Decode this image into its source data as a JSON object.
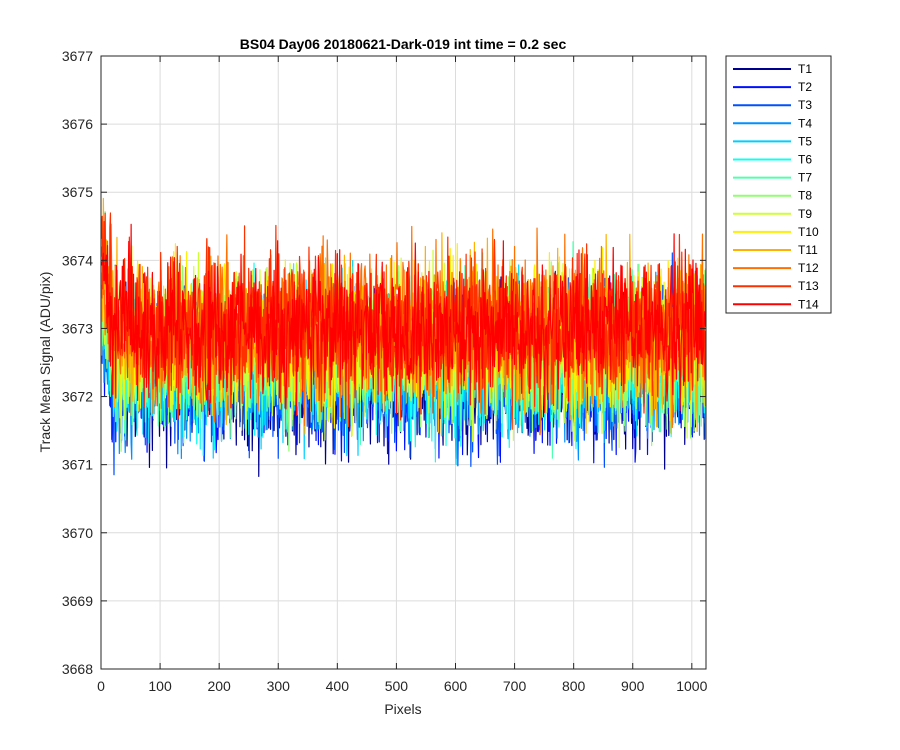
{
  "chart_data": {
    "type": "line",
    "title": "BS04 Day06 20180621-Dark-019 int time = 0.2 sec",
    "xlabel": "Pixels",
    "ylabel": "Track Mean Signal (ADU/pix)",
    "xlim": [
      0,
      1024
    ],
    "ylim": [
      3668,
      3677
    ],
    "xticks": [
      0,
      100,
      200,
      300,
      400,
      500,
      600,
      700,
      800,
      900,
      1000
    ],
    "yticks": [
      3668,
      3669,
      3670,
      3671,
      3672,
      3673,
      3674,
      3675,
      3676,
      3677
    ],
    "grid": true,
    "legend_position": "outside-top-right",
    "series_note": "Each series is dark-frame track mean signal per pixel; values fluctuate around the listed mean with the listed amplitude.",
    "series": [
      {
        "name": "T1",
        "color": "#00008f",
        "mean": 3672.3,
        "amplitude": 1.5
      },
      {
        "name": "T2",
        "color": "#0010ff",
        "mean": 3672.35,
        "amplitude": 1.5
      },
      {
        "name": "T3",
        "color": "#0050ff",
        "mean": 3672.4,
        "amplitude": 1.5
      },
      {
        "name": "T4",
        "color": "#0090ff",
        "mean": 3672.45,
        "amplitude": 1.5
      },
      {
        "name": "T5",
        "color": "#00d0ff",
        "mean": 3672.5,
        "amplitude": 1.5
      },
      {
        "name": "T6",
        "color": "#10ffef",
        "mean": 3672.55,
        "amplitude": 1.5
      },
      {
        "name": "T7",
        "color": "#50ffaf",
        "mean": 3672.6,
        "amplitude": 1.5
      },
      {
        "name": "T8",
        "color": "#90ff6f",
        "mean": 3672.65,
        "amplitude": 1.5
      },
      {
        "name": "T9",
        "color": "#cfff30",
        "mean": 3672.75,
        "amplitude": 1.5
      },
      {
        "name": "T10",
        "color": "#ffef00",
        "mean": 3672.85,
        "amplitude": 1.5
      },
      {
        "name": "T11",
        "color": "#ffb000",
        "mean": 3672.9,
        "amplitude": 1.5
      },
      {
        "name": "T12",
        "color": "#ff7000",
        "mean": 3673.0,
        "amplitude": 1.5
      },
      {
        "name": "T13",
        "color": "#ff3000",
        "mean": 3673.05,
        "amplitude": 1.5
      },
      {
        "name": "T14",
        "color": "#ff0000",
        "mean": 3673.0,
        "amplitude": 1.5
      }
    ]
  }
}
